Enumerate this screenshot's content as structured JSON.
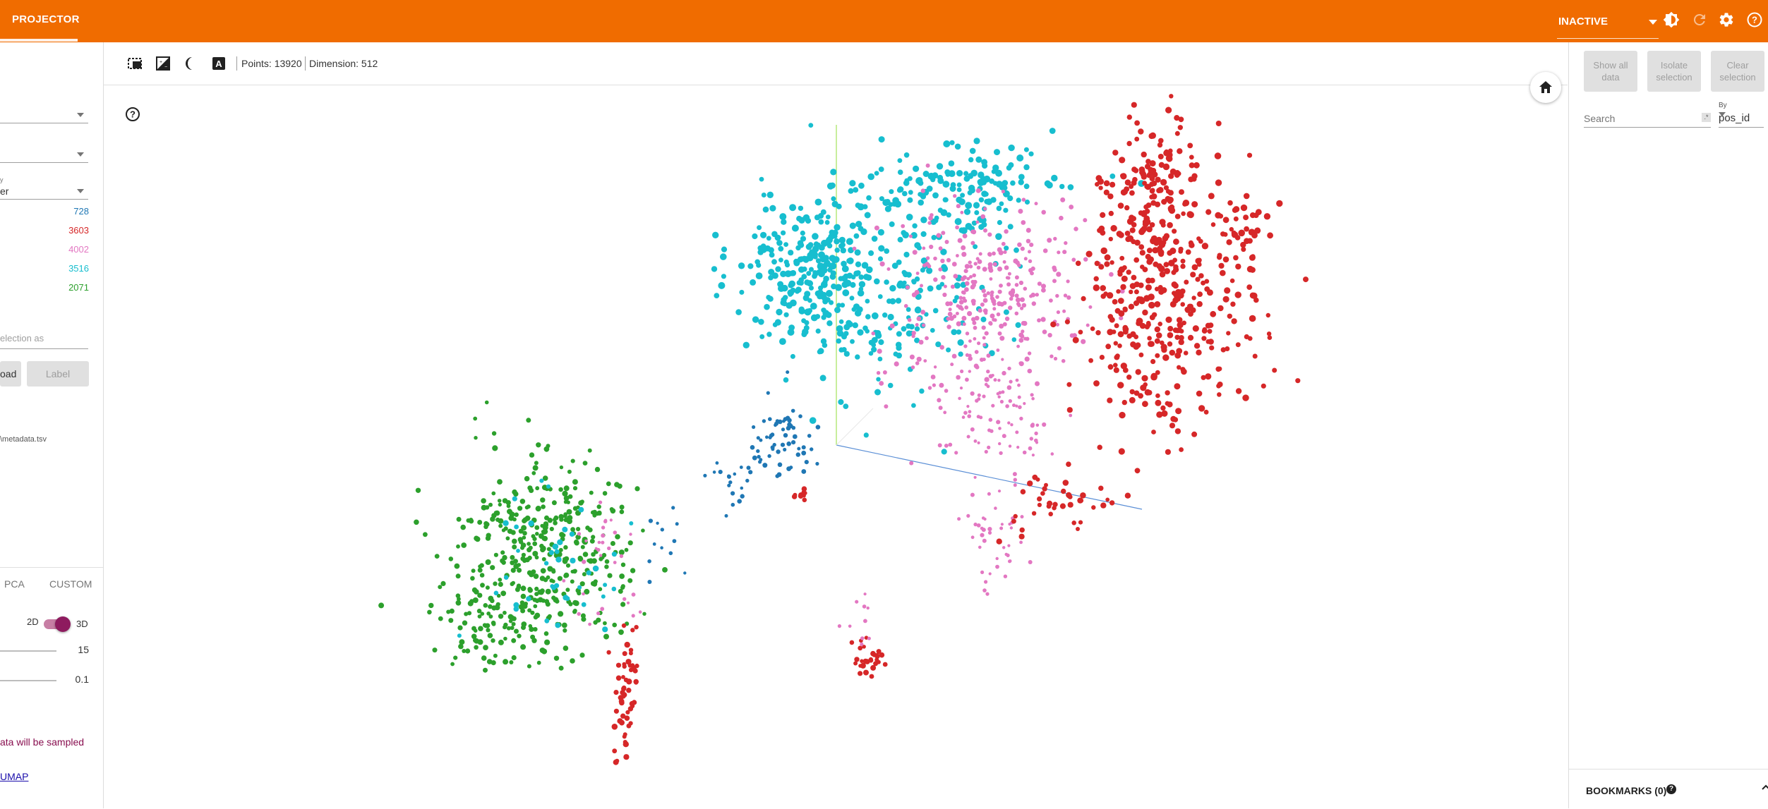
{
  "app": {
    "title": "PROJECTOR",
    "run": "INACTIVE"
  },
  "colors": {
    "accent": "#f06c00",
    "toggle": "#8e1b5f"
  },
  "top_icons": [
    "brightness-icon",
    "refresh-icon",
    "settings-icon",
    "help-icon"
  ],
  "toolbar": {
    "points": "Points: 13920",
    "dimension": "Dimension: 512"
  },
  "left": {
    "color_by_tiny": "y",
    "color_by_value": "er",
    "counts": [
      "728",
      "3603",
      "4002",
      "3516",
      "2071"
    ],
    "count_colors": [
      "#1f77b4",
      "#d62728",
      "#e377c2",
      "#17becf",
      "#2ca02c"
    ],
    "label_placeholder": "election as",
    "load_button": "oad",
    "label_button": "Label",
    "metadata_path": "\\metadata.tsv",
    "tabs": [
      "PCA",
      "CUSTOM"
    ],
    "dim_2d": "2D",
    "dim_3d": "3D",
    "neighbors_value": "15",
    "min_dist_value": "0.1",
    "warning": "ata will be sampled",
    "umap_link": "UMAP"
  },
  "right": {
    "show_all": "Show all data",
    "isolate": "Isolate selection",
    "clear": "Clear selection",
    "search_placeholder": "Search",
    "regex": ".*",
    "by_label": "By",
    "by_value": "pos_id",
    "bookmarks": "BOOKMARKS (0)"
  },
  "scatter": {
    "clusters": [
      {
        "name": "blue",
        "color": "#1f77b4",
        "n": 728
      },
      {
        "name": "red",
        "color": "#d62728",
        "n": 3603
      },
      {
        "name": "pink",
        "color": "#e377c2",
        "n": 4002
      },
      {
        "name": "cyan",
        "color": "#17becf",
        "n": 3516
      },
      {
        "name": "green",
        "color": "#2ca02c",
        "n": 2071
      }
    ]
  }
}
